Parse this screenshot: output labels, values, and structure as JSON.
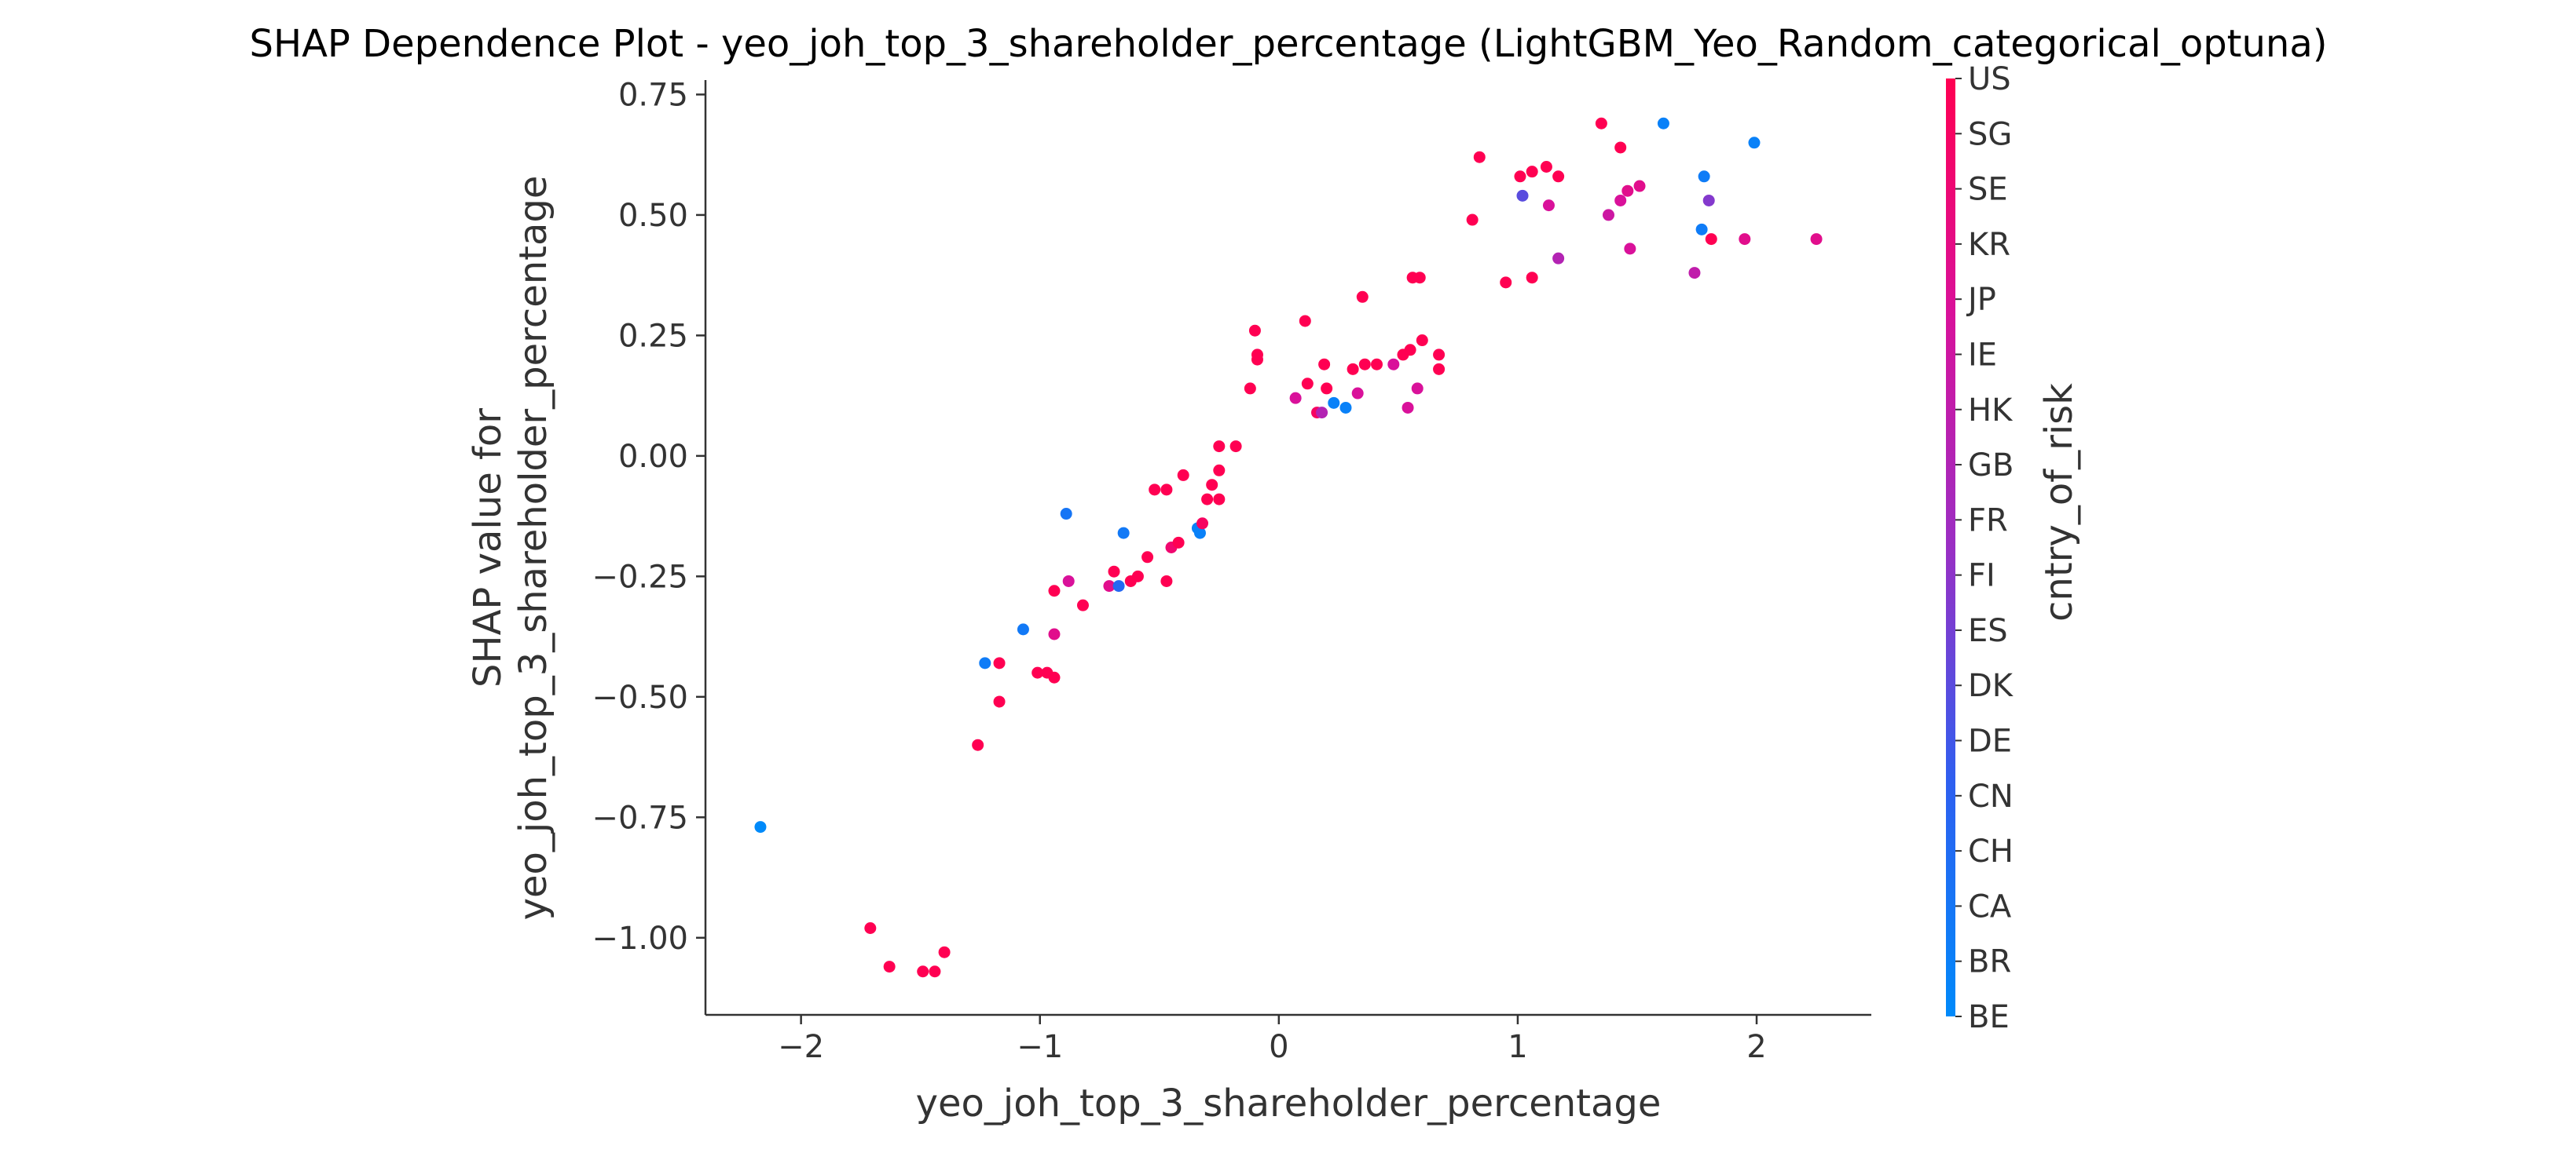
{
  "colors": {
    "low": "#008AFA",
    "high": "#FF0052",
    "axis": "#333333",
    "background": "#FFFFFF"
  },
  "chart_data": {
    "type": "scatter",
    "title": "SHAP Dependence Plot - yeo_joh_top_3_shareholder_percentage (LightGBM_Yeo_Random_categorical_optuna)",
    "xlabel": "yeo_joh_top_3_shareholder_percentage",
    "ylabel": [
      "SHAP value for",
      "yeo_joh_top_3_shareholder_percentage"
    ],
    "xlim": [
      -2.4,
      2.48
    ],
    "ylim": [
      -1.16,
      0.78
    ],
    "x_ticks": [
      -2,
      -1,
      0,
      1,
      2
    ],
    "x_tick_labels": [
      "−2",
      "−1",
      "0",
      "1",
      "2"
    ],
    "y_ticks": [
      0.75,
      0.5,
      0.25,
      0.0,
      -0.25,
      -0.5,
      -0.75,
      -1.0
    ],
    "y_tick_labels": [
      "0.75",
      "0.50",
      "0.25",
      "0.00",
      "−0.25",
      "−0.50",
      "−0.75",
      "−1.00"
    ],
    "grid": false,
    "colorbar": {
      "label": "cntry_of_risk",
      "categories": [
        "BE",
        "BR",
        "CA",
        "CH",
        "CN",
        "DE",
        "DK",
        "ES",
        "FI",
        "FR",
        "GB",
        "HK",
        "IE",
        "JP",
        "KR",
        "SE",
        "SG",
        "US"
      ]
    },
    "points": [
      {
        "x": -2.17,
        "y": -0.77,
        "c": 0.0
      },
      {
        "x": -1.71,
        "y": -0.98,
        "c": 1.0
      },
      {
        "x": -1.63,
        "y": -1.06,
        "c": 1.0
      },
      {
        "x": -1.49,
        "y": -1.07,
        "c": 1.0
      },
      {
        "x": -1.44,
        "y": -1.07,
        "c": 1.0
      },
      {
        "x": -1.4,
        "y": -1.03,
        "c": 1.0
      },
      {
        "x": -1.26,
        "y": -0.6,
        "c": 1.0
      },
      {
        "x": -1.23,
        "y": -0.43,
        "c": 0.08
      },
      {
        "x": -1.17,
        "y": -0.43,
        "c": 1.0
      },
      {
        "x": -1.17,
        "y": -0.51,
        "c": 1.0
      },
      {
        "x": -1.07,
        "y": -0.36,
        "c": 0.1
      },
      {
        "x": -1.01,
        "y": -0.45,
        "c": 1.0
      },
      {
        "x": -0.97,
        "y": -0.45,
        "c": 1.0
      },
      {
        "x": -0.94,
        "y": -0.46,
        "c": 1.0
      },
      {
        "x": -0.94,
        "y": -0.37,
        "c": 0.8
      },
      {
        "x": -0.94,
        "y": -0.28,
        "c": 1.0
      },
      {
        "x": -0.89,
        "y": -0.12,
        "c": 0.12
      },
      {
        "x": -0.88,
        "y": -0.26,
        "c": 0.75
      },
      {
        "x": -0.82,
        "y": -0.31,
        "c": 1.0
      },
      {
        "x": -0.71,
        "y": -0.27,
        "c": 0.8
      },
      {
        "x": -0.69,
        "y": -0.24,
        "c": 1.0
      },
      {
        "x": -0.67,
        "y": -0.27,
        "c": 0.2
      },
      {
        "x": -0.65,
        "y": -0.16,
        "c": 0.1
      },
      {
        "x": -0.62,
        "y": -0.26,
        "c": 1.0
      },
      {
        "x": -0.59,
        "y": -0.25,
        "c": 1.0
      },
      {
        "x": -0.55,
        "y": -0.21,
        "c": 1.0
      },
      {
        "x": -0.52,
        "y": -0.07,
        "c": 1.0
      },
      {
        "x": -0.47,
        "y": -0.07,
        "c": 1.0
      },
      {
        "x": -0.47,
        "y": -0.26,
        "c": 1.0
      },
      {
        "x": -0.45,
        "y": -0.19,
        "c": 0.9
      },
      {
        "x": -0.42,
        "y": -0.18,
        "c": 1.0
      },
      {
        "x": -0.4,
        "y": -0.04,
        "c": 1.0
      },
      {
        "x": -0.34,
        "y": -0.15,
        "c": 0.05
      },
      {
        "x": -0.33,
        "y": -0.16,
        "c": 0.05
      },
      {
        "x": -0.32,
        "y": -0.14,
        "c": 0.95
      },
      {
        "x": -0.3,
        "y": -0.09,
        "c": 1.0
      },
      {
        "x": -0.28,
        "y": -0.06,
        "c": 1.0
      },
      {
        "x": -0.25,
        "y": -0.09,
        "c": 1.0
      },
      {
        "x": -0.25,
        "y": -0.03,
        "c": 1.0
      },
      {
        "x": -0.25,
        "y": 0.02,
        "c": 1.0
      },
      {
        "x": -0.18,
        "y": 0.02,
        "c": 1.0
      },
      {
        "x": -0.12,
        "y": 0.14,
        "c": 1.0
      },
      {
        "x": -0.1,
        "y": 0.26,
        "c": 1.0
      },
      {
        "x": -0.09,
        "y": 0.21,
        "c": 1.0
      },
      {
        "x": -0.09,
        "y": 0.2,
        "c": 1.0
      },
      {
        "x": 0.07,
        "y": 0.12,
        "c": 0.75
      },
      {
        "x": 0.11,
        "y": 0.28,
        "c": 1.0
      },
      {
        "x": 0.12,
        "y": 0.15,
        "c": 1.0
      },
      {
        "x": 0.16,
        "y": 0.09,
        "c": 0.95
      },
      {
        "x": 0.18,
        "y": 0.09,
        "c": 0.6
      },
      {
        "x": 0.19,
        "y": 0.19,
        "c": 1.0
      },
      {
        "x": 0.2,
        "y": 0.14,
        "c": 1.0
      },
      {
        "x": 0.23,
        "y": 0.11,
        "c": 0.05
      },
      {
        "x": 0.28,
        "y": 0.1,
        "c": 0.05
      },
      {
        "x": 0.31,
        "y": 0.18,
        "c": 1.0
      },
      {
        "x": 0.33,
        "y": 0.13,
        "c": 0.75
      },
      {
        "x": 0.35,
        "y": 0.33,
        "c": 1.0
      },
      {
        "x": 0.36,
        "y": 0.19,
        "c": 1.0
      },
      {
        "x": 0.41,
        "y": 0.19,
        "c": 1.0
      },
      {
        "x": 0.48,
        "y": 0.19,
        "c": 0.75
      },
      {
        "x": 0.52,
        "y": 0.21,
        "c": 1.0
      },
      {
        "x": 0.54,
        "y": 0.1,
        "c": 0.75
      },
      {
        "x": 0.55,
        "y": 0.22,
        "c": 1.0
      },
      {
        "x": 0.56,
        "y": 0.37,
        "c": 1.0
      },
      {
        "x": 0.59,
        "y": 0.37,
        "c": 1.0
      },
      {
        "x": 0.58,
        "y": 0.14,
        "c": 0.75
      },
      {
        "x": 0.6,
        "y": 0.24,
        "c": 1.0
      },
      {
        "x": 0.67,
        "y": 0.21,
        "c": 1.0
      },
      {
        "x": 0.67,
        "y": 0.18,
        "c": 1.0
      },
      {
        "x": 0.81,
        "y": 0.49,
        "c": 1.0
      },
      {
        "x": 0.84,
        "y": 0.62,
        "c": 1.0
      },
      {
        "x": 0.95,
        "y": 0.36,
        "c": 1.0
      },
      {
        "x": 1.01,
        "y": 0.58,
        "c": 1.0
      },
      {
        "x": 1.02,
        "y": 0.54,
        "c": 0.35
      },
      {
        "x": 1.06,
        "y": 0.59,
        "c": 1.0
      },
      {
        "x": 1.06,
        "y": 0.37,
        "c": 1.0
      },
      {
        "x": 1.12,
        "y": 0.6,
        "c": 1.0
      },
      {
        "x": 1.13,
        "y": 0.52,
        "c": 0.75
      },
      {
        "x": 1.17,
        "y": 0.58,
        "c": 1.0
      },
      {
        "x": 1.17,
        "y": 0.41,
        "c": 0.6
      },
      {
        "x": 1.35,
        "y": 0.69,
        "c": 1.0
      },
      {
        "x": 1.38,
        "y": 0.5,
        "c": 0.7
      },
      {
        "x": 1.43,
        "y": 0.64,
        "c": 1.0
      },
      {
        "x": 1.43,
        "y": 0.53,
        "c": 0.75
      },
      {
        "x": 1.46,
        "y": 0.55,
        "c": 0.8
      },
      {
        "x": 1.47,
        "y": 0.43,
        "c": 0.75
      },
      {
        "x": 1.51,
        "y": 0.56,
        "c": 0.8
      },
      {
        "x": 1.61,
        "y": 0.69,
        "c": 0.05
      },
      {
        "x": 1.74,
        "y": 0.38,
        "c": 0.65
      },
      {
        "x": 1.77,
        "y": 0.47,
        "c": 0.08
      },
      {
        "x": 1.78,
        "y": 0.58,
        "c": 0.08
      },
      {
        "x": 1.8,
        "y": 0.53,
        "c": 0.45
      },
      {
        "x": 1.81,
        "y": 0.45,
        "c": 1.0
      },
      {
        "x": 1.95,
        "y": 0.45,
        "c": 0.8
      },
      {
        "x": 1.99,
        "y": 0.65,
        "c": 0.05
      },
      {
        "x": 2.25,
        "y": 0.45,
        "c": 0.8
      }
    ]
  }
}
